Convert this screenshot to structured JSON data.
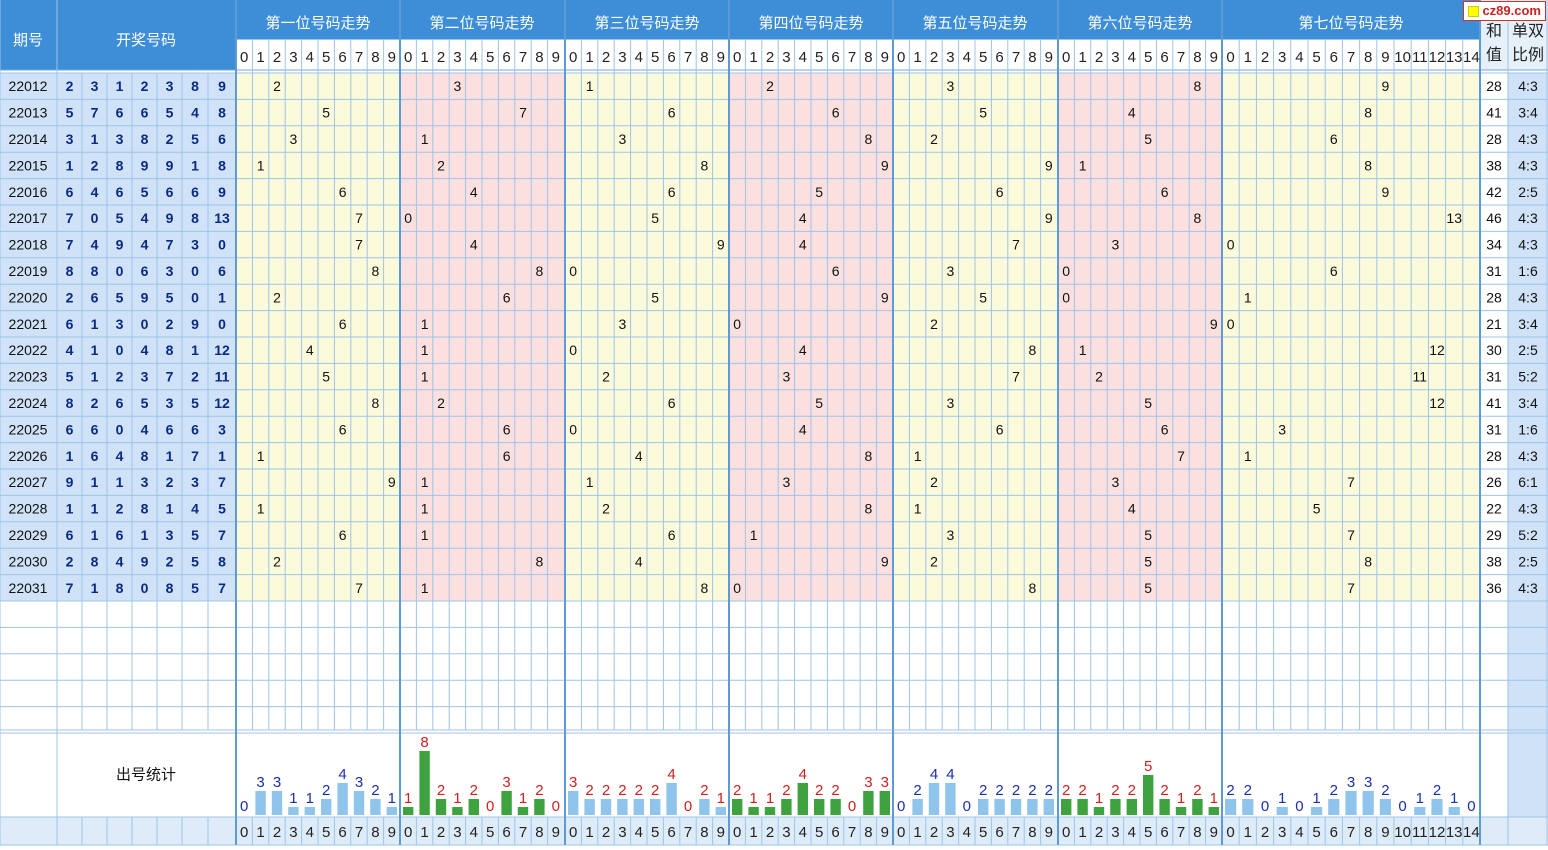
{
  "headers": {
    "period": "期号",
    "draw": "开奖号码",
    "positions": [
      "第一位号码走势",
      "第二位号码走势",
      "第三位号码走势",
      "第四位号码走势",
      "第五位号码走势",
      "第六位号码走势",
      "第七位号码走势"
    ],
    "sum": "和值",
    "ratio": "单双比例"
  },
  "digit_labels": [
    "0",
    "1",
    "2",
    "3",
    "4",
    "5",
    "6",
    "7",
    "8",
    "9"
  ],
  "seventh_labels": [
    "0",
    "1",
    "2",
    "3",
    "4",
    "5",
    "6",
    "7",
    "8",
    "9",
    "10",
    "11",
    "12",
    "13",
    "14"
  ],
  "stats_label": "出号统计",
  "logo": "cz89.com",
  "colors": {
    "header_blue": "#3d8ed6",
    "blue_cell": "#cfe2f7",
    "yellow": "#fbfbdc",
    "pink": "#fce0e0",
    "bar_blue": "#8fc4ec",
    "bar_green": "#3ea33e",
    "text_red": "#d02020",
    "text_blue": "#1a2fb0"
  },
  "draws": [
    {
      "period": "22012",
      "nums": [
        2,
        3,
        1,
        2,
        3,
        8,
        9
      ],
      "sum": "28",
      "ratio": "4:3"
    },
    {
      "period": "22013",
      "nums": [
        5,
        7,
        6,
        6,
        5,
        4,
        8
      ],
      "sum": "41",
      "ratio": "3:4"
    },
    {
      "period": "22014",
      "nums": [
        3,
        1,
        3,
        8,
        2,
        5,
        6
      ],
      "sum": "28",
      "ratio": "4:3"
    },
    {
      "period": "22015",
      "nums": [
        1,
        2,
        8,
        9,
        9,
        1,
        8
      ],
      "sum": "38",
      "ratio": "4:3"
    },
    {
      "period": "22016",
      "nums": [
        6,
        4,
        6,
        5,
        6,
        6,
        9
      ],
      "sum": "42",
      "ratio": "2:5"
    },
    {
      "period": "22017",
      "nums": [
        7,
        0,
        5,
        4,
        9,
        8,
        13
      ],
      "sum": "46",
      "ratio": "4:3"
    },
    {
      "period": "22018",
      "nums": [
        7,
        4,
        9,
        4,
        7,
        3,
        0
      ],
      "sum": "34",
      "ratio": "4:3"
    },
    {
      "period": "22019",
      "nums": [
        8,
        8,
        0,
        6,
        3,
        0,
        6
      ],
      "sum": "31",
      "ratio": "1:6"
    },
    {
      "period": "22020",
      "nums": [
        2,
        6,
        5,
        9,
        5,
        0,
        1
      ],
      "sum": "28",
      "ratio": "4:3"
    },
    {
      "period": "22021",
      "nums": [
        6,
        1,
        3,
        0,
        2,
        9,
        0
      ],
      "sum": "21",
      "ratio": "3:4"
    },
    {
      "period": "22022",
      "nums": [
        4,
        1,
        0,
        4,
        8,
        1,
        12
      ],
      "sum": "30",
      "ratio": "2:5"
    },
    {
      "period": "22023",
      "nums": [
        5,
        1,
        2,
        3,
        7,
        2,
        11
      ],
      "sum": "31",
      "ratio": "5:2"
    },
    {
      "period": "22024",
      "nums": [
        8,
        2,
        6,
        5,
        3,
        5,
        12
      ],
      "sum": "41",
      "ratio": "3:4"
    },
    {
      "period": "22025",
      "nums": [
        6,
        6,
        0,
        4,
        6,
        6,
        3
      ],
      "sum": "31",
      "ratio": "1:6"
    },
    {
      "period": "22026",
      "nums": [
        1,
        6,
        4,
        8,
        1,
        7,
        1
      ],
      "sum": "28",
      "ratio": "4:3"
    },
    {
      "period": "22027",
      "nums": [
        9,
        1,
        1,
        3,
        2,
        3,
        7
      ],
      "sum": "26",
      "ratio": "6:1"
    },
    {
      "period": "22028",
      "nums": [
        1,
        1,
        2,
        8,
        1,
        4,
        5
      ],
      "sum": "22",
      "ratio": "4:3"
    },
    {
      "period": "22029",
      "nums": [
        6,
        1,
        6,
        1,
        3,
        5,
        7
      ],
      "sum": "29",
      "ratio": "5:2"
    },
    {
      "period": "22030",
      "nums": [
        2,
        8,
        4,
        9,
        2,
        5,
        8
      ],
      "sum": "38",
      "ratio": "2:5"
    },
    {
      "period": "22031",
      "nums": [
        7,
        1,
        8,
        0,
        8,
        5,
        7
      ],
      "sum": "36",
      "ratio": "4:3"
    }
  ],
  "chart_data": {
    "type": "bar",
    "title": "出号统计",
    "series": [
      {
        "values": [
          0,
          3,
          3,
          1,
          1,
          2,
          4,
          3,
          2,
          1
        ]
      },
      {
        "values": [
          1,
          8,
          2,
          1,
          2,
          0,
          3,
          1,
          2,
          0
        ]
      },
      {
        "values": [
          3,
          2,
          2,
          2,
          2,
          2,
          4,
          0,
          2,
          1
        ]
      },
      {
        "values": [
          2,
          1,
          1,
          2,
          4,
          2,
          2,
          0,
          3,
          3
        ]
      },
      {
        "values": [
          0,
          2,
          4,
          4,
          0,
          2,
          2,
          2,
          2,
          2
        ]
      },
      {
        "values": [
          2,
          2,
          1,
          2,
          2,
          5,
          2,
          1,
          2,
          1
        ]
      },
      {
        "values": [
          2,
          2,
          0,
          1,
          0,
          1,
          2,
          3,
          3,
          2,
          0,
          1,
          2,
          1,
          0
        ]
      }
    ],
    "ylim": [
      0,
      8
    ]
  }
}
